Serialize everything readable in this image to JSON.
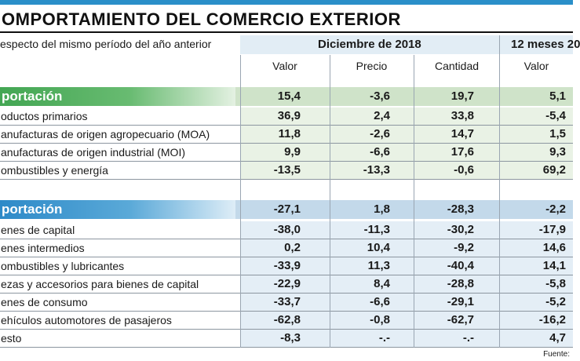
{
  "title": "OMPORTAMIENTO DEL COMERCIO EXTERIOR",
  "note": "especto del mismo período del año anterior",
  "groups": {
    "december": "Diciembre de 2018",
    "twelve_months": "12 meses 20"
  },
  "columns": {
    "valor": "Valor",
    "precio": "Precio",
    "cantidad": "Cantidad",
    "valor_12m": "Valor"
  },
  "exports": {
    "title": "portación",
    "totals": [
      "15,4",
      "-3,6",
      "19,7",
      "5,1"
    ],
    "rows": [
      {
        "label": "oductos primarios",
        "values": [
          "36,9",
          "2,4",
          "33,8",
          "-5,4"
        ]
      },
      {
        "label": "anufacturas de origen agropecuario (MOA)",
        "values": [
          "11,8",
          "-2,6",
          "14,7",
          "1,5"
        ]
      },
      {
        "label": "anufacturas de origen industrial (MOI)",
        "values": [
          "9,9",
          "-6,6",
          "17,6",
          "9,3"
        ]
      },
      {
        "label": "ombustibles y energía",
        "values": [
          "-13,5",
          "-13,3",
          "-0,6",
          "69,2"
        ]
      }
    ]
  },
  "imports": {
    "title": "portación",
    "totals": [
      "-27,1",
      "1,8",
      "-28,3",
      "-2,2"
    ],
    "rows": [
      {
        "label": "enes de capital",
        "values": [
          "-38,0",
          "-11,3",
          "-30,2",
          "-17,9"
        ]
      },
      {
        "label": "enes intermedios",
        "values": [
          "0,2",
          "10,4",
          "-9,2",
          "14,6"
        ]
      },
      {
        "label": "ombustibles y lubricantes",
        "values": [
          "-33,9",
          "11,3",
          "-40,4",
          "14,1"
        ]
      },
      {
        "label": "ezas y accesorios para bienes de capital",
        "values": [
          "-22,9",
          "8,4",
          "-28,8",
          "-5,8"
        ]
      },
      {
        "label": "enes de consumo",
        "values": [
          "-33,7",
          "-6,6",
          "-29,1",
          "-5,2"
        ]
      },
      {
        "label": "ehículos automotores de pasajeros",
        "values": [
          "-62,8",
          "-0,8",
          "-62,7",
          "-16,2"
        ]
      },
      {
        "label": "esto",
        "values": [
          "-8,3",
          "-.-",
          "-.-",
          "4,7"
        ]
      }
    ]
  },
  "source": "Fuente:",
  "colors": {
    "accent_blue": "#2a8fc9",
    "export_green": "#43a653",
    "import_blue": "#2e8ac8"
  }
}
